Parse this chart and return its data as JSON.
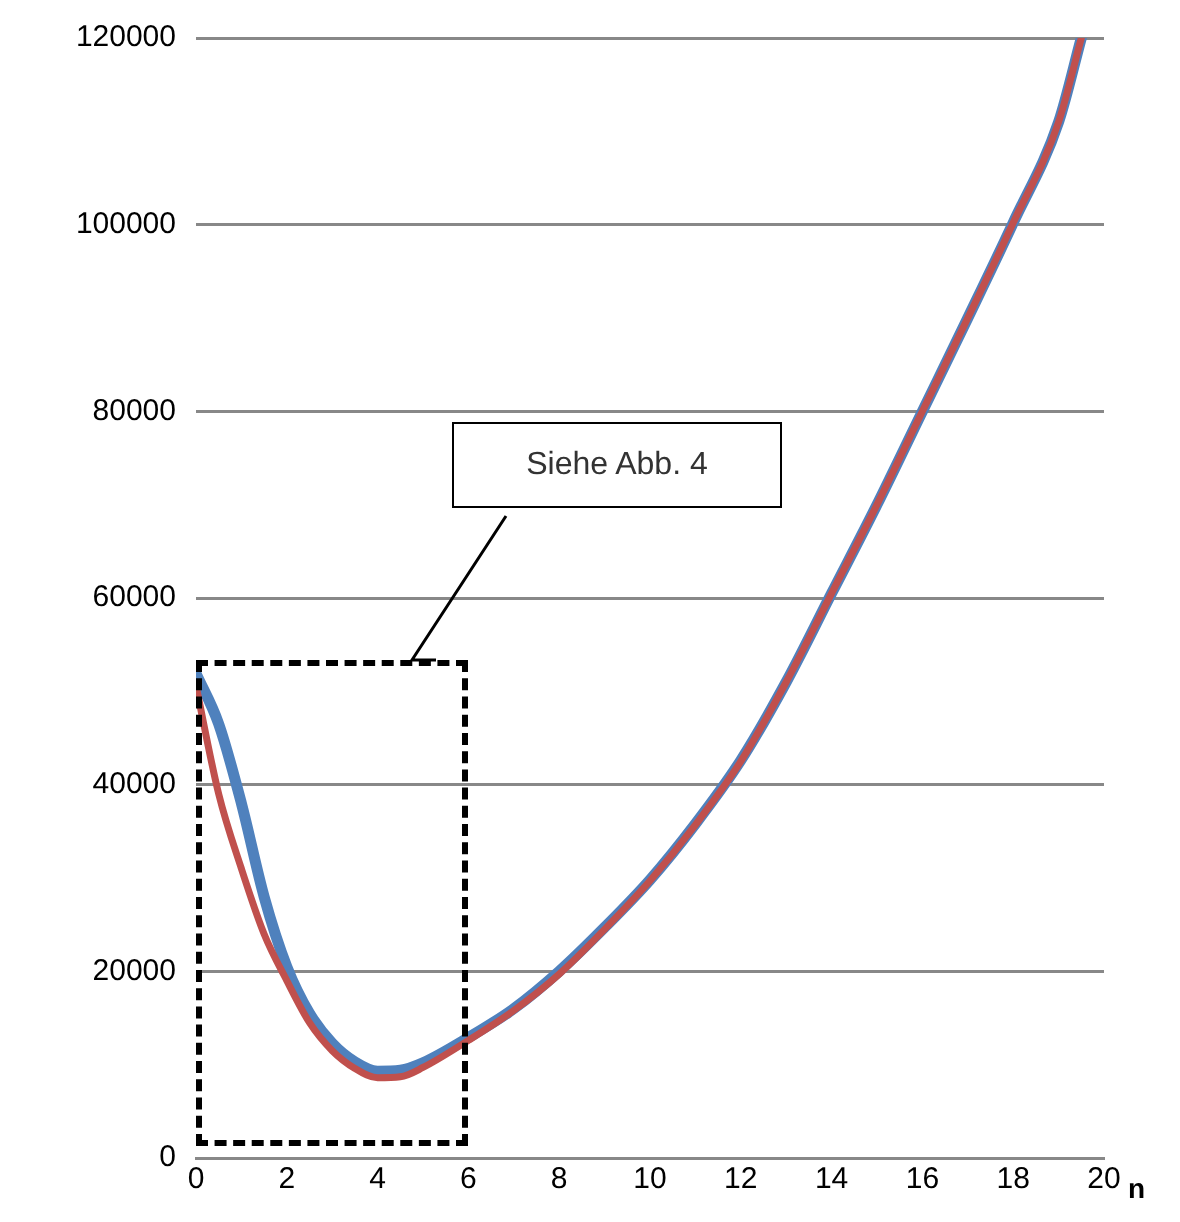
{
  "chart_data": {
    "type": "line",
    "xlabel": "n",
    "x": [
      0,
      0.5,
      1,
      1.5,
      2,
      2.5,
      3,
      3.5,
      4,
      4.5,
      5,
      6,
      7,
      8,
      9,
      10,
      11,
      12,
      13,
      14,
      15,
      16,
      17,
      18,
      19,
      19.5
    ],
    "series": [
      {
        "color": "#4f81bd",
        "values": [
          51900,
          46500,
          38000,
          28000,
          20500,
          15500,
          12300,
          10300,
          9300,
          9400,
          10200,
          12900,
          16000,
          20000,
          24700,
          29800,
          35800,
          42600,
          51000,
          60500,
          70000,
          80000,
          90000,
          100200,
          111000,
          120000
        ]
      },
      {
        "color": "#c0504d",
        "values": [
          50600,
          39000,
          31000,
          24000,
          19000,
          14500,
          11500,
          9600,
          8600,
          8700,
          9700,
          12600,
          15800,
          19700,
          24500,
          29700,
          35700,
          42500,
          51000,
          60500,
          70000,
          80000,
          90000,
          100200,
          111000,
          120000
        ]
      }
    ],
    "xlim": [
      0,
      20
    ],
    "xticks": [
      0,
      2,
      4,
      6,
      8,
      10,
      12,
      14,
      16,
      18,
      20
    ],
    "ylim": [
      0,
      120000
    ],
    "yticks": [
      0,
      20000,
      40000,
      60000,
      80000,
      100000,
      120000
    ],
    "grid": "y",
    "marker": "none",
    "line_style": "solid",
    "annotations": [
      "Siehe Abb. 4"
    ]
  }
}
